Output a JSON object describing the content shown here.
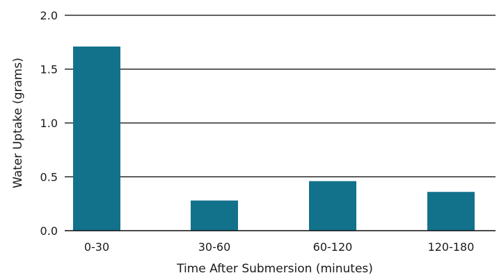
{
  "chart_data": {
    "type": "bar",
    "categories": [
      "0-30",
      "30-60",
      "60-120",
      "120-180"
    ],
    "values": [
      1.71,
      0.28,
      0.46,
      0.36
    ],
    "title": "",
    "xlabel": "Time After Submersion (minutes)",
    "ylabel": "Water Uptake (grams)",
    "ylim": [
      0,
      2.0
    ],
    "yticks": [
      "0.0",
      "0.5",
      "1.0",
      "1.5",
      "2.0"
    ],
    "ytick_values": [
      0,
      0.5,
      1.0,
      1.5,
      2.0
    ],
    "grid": "horizontal",
    "legend": "none",
    "bar_color": "#13728b"
  }
}
